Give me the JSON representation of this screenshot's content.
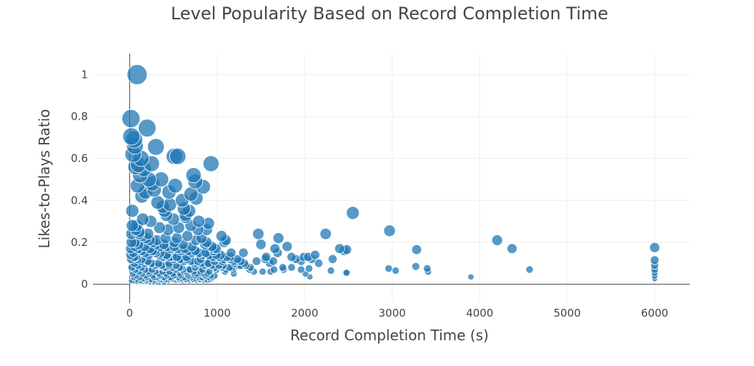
{
  "chart_data": {
    "type": "scatter",
    "title": "Level Popularity Based on Record Completion Time",
    "xlabel": "Record Completion Time (s)",
    "ylabel": "Likes-to-Plays Ratio",
    "xlim": [
      -420,
      6400
    ],
    "ylim": [
      -0.09,
      1.1
    ],
    "xticks": [
      0,
      1000,
      2000,
      3000,
      4000,
      5000,
      6000
    ],
    "yticks": [
      0,
      0.2,
      0.4,
      0.6,
      0.8,
      1
    ],
    "xtick_labels": [
      "0",
      "1000",
      "2000",
      "3000",
      "4000",
      "5000",
      "6000"
    ],
    "ytick_labels": [
      "0",
      "0.2",
      "0.4",
      "0.6",
      "0.8",
      "1"
    ],
    "grid": true,
    "marker_color": "#1f77b4",
    "marker_size_encodes": "y",
    "series": [
      {
        "x": [
          85,
          15,
          200,
          20,
          300,
          250,
          510,
          550,
          930,
          840,
          730,
          750,
          700,
          620,
          760,
          520,
          450,
          360,
          400,
          600,
          680,
          640,
          900,
          880,
          790,
          1100,
          1050,
          1080,
          1300,
          1470,
          1500,
          1450,
          1560,
          1700,
          1690,
          1660,
          1800,
          1850,
          1900,
          1960,
          1990,
          2040,
          2080,
          2120,
          2160,
          2240,
          2320,
          2400,
          2480,
          2550,
          2450,
          2970,
          3280,
          4200,
          4370,
          6000,
          6000,
          6000,
          6000,
          6000,
          6000,
          6000,
          1520,
          1610,
          1760,
          1960,
          2300,
          2470,
          2960,
          3040,
          3270,
          3400,
          3410,
          3900,
          4570,
          1850,
          2050,
          2480,
          1420,
          1230,
          1330,
          1600,
          1650,
          1750,
          2010,
          2060,
          1150,
          1200,
          1260,
          1380,
          1550,
          1640,
          960,
          1010,
          1060,
          1160,
          1240,
          60,
          90,
          40,
          130,
          160,
          120,
          220,
          260,
          180,
          100,
          50,
          70,
          140,
          280,
          320,
          380,
          420,
          460,
          500,
          560,
          640,
          700,
          780,
          820,
          880,
          940,
          990,
          30,
          80,
          150,
          240,
          340,
          440,
          540,
          660,
          760,
          860,
          960,
          1040,
          110,
          210,
          310,
          410,
          510,
          610,
          710,
          810,
          910,
          1010,
          20,
          60,
          100,
          170,
          230,
          290,
          350,
          430,
          490,
          570,
          650,
          730,
          810,
          890,
          970,
          1070,
          1170,
          1270,
          1370,
          10,
          40,
          70,
          140,
          200,
          260,
          330,
          390,
          450,
          530,
          590,
          670,
          750,
          830,
          910,
          990,
          1090,
          1190,
          15,
          55,
          95,
          135,
          175,
          215,
          255,
          295,
          335,
          375,
          415,
          455,
          495,
          535,
          575,
          615,
          655,
          695,
          735,
          775,
          815,
          855,
          895,
          935,
          975,
          25,
          65,
          105,
          145,
          185,
          225,
          265,
          305,
          345,
          385,
          425,
          465,
          505,
          545,
          585,
          625,
          665,
          705,
          745,
          785,
          825,
          865,
          905,
          945,
          35,
          75,
          115,
          155,
          195,
          235,
          275,
          315,
          355,
          395,
          435,
          475,
          515,
          555,
          595,
          635,
          675,
          715,
          755,
          795,
          835,
          875,
          915,
          45,
          85,
          125,
          165,
          205,
          245,
          285,
          325,
          365,
          405,
          445,
          485,
          525,
          565,
          605,
          645,
          685,
          725,
          765,
          805,
          845,
          885,
          10,
          50,
          90,
          130,
          170,
          210,
          250,
          290,
          330,
          370,
          410,
          450,
          490,
          530,
          570,
          610,
          650,
          690,
          730,
          770,
          810,
          850,
          890,
          930,
          20,
          60,
          100,
          140,
          180,
          220,
          260,
          300,
          340,
          380,
          420,
          460,
          500,
          540,
          580,
          620,
          660,
          700,
          740,
          780,
          820,
          860,
          900,
          940,
          980,
          1020,
          1060,
          1100,
          1140,
          1180,
          30,
          70,
          110,
          150,
          190,
          230,
          270,
          310,
          350,
          390,
          430,
          470,
          510,
          550,
          590,
          630,
          670,
          710,
          750,
          790,
          830,
          870,
          910,
          950,
          990,
          1030,
          1070,
          1110,
          1150,
          1190,
          1230,
          1270,
          1310,
          15,
          25,
          35,
          45,
          55,
          65,
          75,
          85,
          95,
          105,
          115,
          125,
          135,
          145,
          155,
          165,
          175,
          185,
          195,
          205,
          215,
          225,
          235,
          245,
          255,
          265,
          275,
          285,
          295,
          305,
          325,
          345,
          365,
          385,
          405
        ],
        "y": [
          1.0,
          0.79,
          0.745,
          0.705,
          0.655,
          0.575,
          0.61,
          0.61,
          0.575,
          0.465,
          0.52,
          0.49,
          0.43,
          0.36,
          0.41,
          0.47,
          0.44,
          0.5,
          0.35,
          0.4,
          0.35,
          0.33,
          0.29,
          0.26,
          0.3,
          0.21,
          0.23,
          0.2,
          0.15,
          0.24,
          0.19,
          0.11,
          0.13,
          0.22,
          0.15,
          0.17,
          0.18,
          0.13,
          0.12,
          0.11,
          0.13,
          0.13,
          0.12,
          0.14,
          0.1,
          0.24,
          0.12,
          0.17,
          0.165,
          0.34,
          0.16,
          0.255,
          0.165,
          0.21,
          0.17,
          0.175,
          0.115,
          0.09,
          0.07,
          0.055,
          0.04,
          0.025,
          0.06,
          0.06,
          0.07,
          0.07,
          0.065,
          0.055,
          0.075,
          0.065,
          0.085,
          0.075,
          0.06,
          0.035,
          0.07,
          0.08,
          0.075,
          0.055,
          0.06,
          0.11,
          0.09,
          0.1,
          0.07,
          0.08,
          0.05,
          0.035,
          0.13,
          0.1,
          0.09,
          0.08,
          0.12,
          0.11,
          0.17,
          0.13,
          0.11,
          0.15,
          0.09,
          0.66,
          0.47,
          0.62,
          0.6,
          0.55,
          0.52,
          0.5,
          0.48,
          0.44,
          0.57,
          0.69,
          0.56,
          0.42,
          0.45,
          0.39,
          0.37,
          0.33,
          0.38,
          0.31,
          0.27,
          0.32,
          0.28,
          0.26,
          0.22,
          0.2,
          0.18,
          0.17,
          0.35,
          0.28,
          0.31,
          0.3,
          0.27,
          0.26,
          0.22,
          0.23,
          0.21,
          0.19,
          0.16,
          0.14,
          0.25,
          0.24,
          0.21,
          0.22,
          0.2,
          0.19,
          0.18,
          0.15,
          0.14,
          0.13,
          0.24,
          0.2,
          0.19,
          0.18,
          0.17,
          0.16,
          0.15,
          0.14,
          0.13,
          0.12,
          0.13,
          0.11,
          0.12,
          0.1,
          0.11,
          0.09,
          0.08,
          0.09,
          0.07,
          0.17,
          0.15,
          0.13,
          0.12,
          0.11,
          0.1,
          0.09,
          0.08,
          0.1,
          0.09,
          0.08,
          0.07,
          0.08,
          0.07,
          0.06,
          0.07,
          0.06,
          0.05,
          0.12,
          0.1,
          0.09,
          0.08,
          0.07,
          0.06,
          0.07,
          0.06,
          0.05,
          0.06,
          0.05,
          0.06,
          0.05,
          0.04,
          0.05,
          0.06,
          0.05,
          0.04,
          0.05,
          0.04,
          0.05,
          0.04,
          0.05,
          0.04,
          0.04,
          0.08,
          0.07,
          0.06,
          0.05,
          0.04,
          0.05,
          0.04,
          0.03,
          0.04,
          0.03,
          0.04,
          0.03,
          0.04,
          0.03,
          0.04,
          0.03,
          0.04,
          0.03,
          0.04,
          0.03,
          0.03,
          0.04,
          0.03,
          0.03,
          0.05,
          0.04,
          0.03,
          0.025,
          0.03,
          0.02,
          0.03,
          0.025,
          0.02,
          0.03,
          0.02,
          0.025,
          0.02,
          0.03,
          0.025,
          0.02,
          0.025,
          0.02,
          0.025,
          0.02,
          0.025,
          0.02,
          0.02,
          0.03,
          0.02,
          0.015,
          0.02,
          0.015,
          0.02,
          0.015,
          0.02,
          0.015,
          0.02,
          0.015,
          0.02,
          0.015,
          0.02,
          0.015,
          0.02,
          0.015,
          0.02,
          0.015,
          0.02,
          0.015,
          0.015,
          0.14,
          0.13,
          0.12,
          0.11,
          0.1,
          0.11,
          0.1,
          0.09,
          0.1,
          0.09,
          0.08,
          0.09,
          0.08,
          0.07,
          0.08,
          0.07,
          0.06,
          0.07,
          0.06,
          0.05,
          0.06,
          0.05,
          0.05,
          0.04,
          0.2,
          0.18,
          0.17,
          0.16,
          0.15,
          0.14,
          0.16,
          0.15,
          0.14,
          0.13,
          0.14,
          0.13,
          0.12,
          0.13,
          0.12,
          0.11,
          0.12,
          0.11,
          0.1,
          0.11,
          0.1,
          0.09,
          0.1,
          0.09,
          0.08,
          0.09,
          0.08,
          0.07,
          0.08,
          0.07,
          0.28,
          0.26,
          0.24,
          0.23,
          0.22,
          0.21,
          0.2,
          0.19,
          0.18,
          0.19,
          0.18,
          0.17,
          0.18,
          0.17,
          0.16,
          0.17,
          0.16,
          0.15,
          0.16,
          0.15,
          0.14,
          0.15,
          0.14,
          0.13,
          0.14,
          0.13,
          0.12,
          0.13,
          0.12,
          0.11,
          0.12,
          0.11,
          0.1,
          0.015,
          0.01,
          0.012,
          0.01,
          0.008,
          0.01,
          0.006,
          0.01,
          0.008,
          0.005,
          0.01,
          0.008,
          0.006,
          0.01,
          0.008,
          0.006,
          0.005,
          0.01,
          0.008,
          0.006,
          0.005,
          0.007,
          0.005,
          0.006,
          0.005,
          0.004,
          0.006,
          0.005,
          0.004,
          0.005,
          0.004,
          0.005,
          0.004,
          0.005,
          0.004
        ]
      }
    ]
  }
}
